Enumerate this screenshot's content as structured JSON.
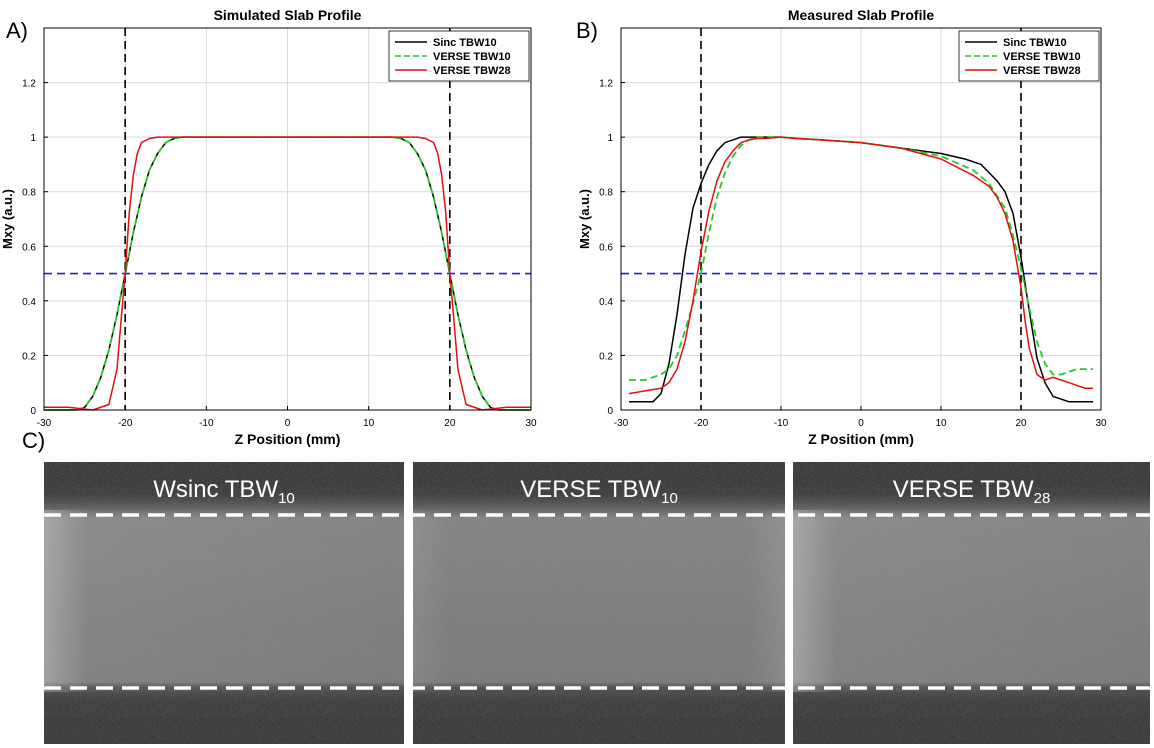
{
  "panel_labels": {
    "a": "A)",
    "b": "B)",
    "c": "C)"
  },
  "chart_data": [
    {
      "type": "line",
      "title": "Simulated Slab Profile",
      "xlabel": "Z Position (mm)",
      "ylabel": "Mxy (a.u.)",
      "xlim": [
        -30,
        30
      ],
      "ylim": [
        0,
        1.4
      ],
      "xticks": [
        -30,
        -20,
        -10,
        0,
        10,
        20,
        30
      ],
      "yticks": [
        0,
        0.2,
        0.4,
        0.6,
        0.8,
        1,
        1.2
      ],
      "ytick_labels": [
        "0",
        "0.2",
        "0.4",
        "0.6",
        "0.8",
        "1",
        "1.2"
      ],
      "grid": true,
      "legend_position": "top-right",
      "reference_lines": {
        "vertical_x": [
          -20,
          20
        ],
        "horizontal_y": 0.5
      },
      "colors": {
        "vertical_ref": "#000000",
        "horizontal_ref": "#1f1fe0"
      },
      "series": [
        {
          "name": "Sinc TBW10",
          "color": "#000000",
          "dash": "solid",
          "x": [
            -30,
            -28,
            -26,
            -25,
            -24,
            -23,
            -22,
            -21,
            -20,
            -19,
            -18,
            -17,
            -16,
            -15,
            -14,
            -13,
            -12,
            -10,
            0,
            10,
            12,
            13,
            14,
            15,
            16,
            17,
            18,
            19,
            20,
            21,
            22,
            23,
            24,
            25,
            26,
            28,
            30
          ],
          "y": [
            0,
            0,
            0,
            0.01,
            0.05,
            0.12,
            0.22,
            0.35,
            0.5,
            0.65,
            0.78,
            0.88,
            0.94,
            0.98,
            0.995,
            1,
            1,
            1,
            1,
            1,
            1,
            1,
            0.995,
            0.98,
            0.94,
            0.88,
            0.78,
            0.65,
            0.5,
            0.35,
            0.22,
            0.12,
            0.05,
            0.01,
            0,
            0,
            0
          ]
        },
        {
          "name": "VERSE TBW10",
          "color": "#22cc22",
          "dash": "dashed",
          "x": [
            -30,
            -28,
            -26,
            -25,
            -24,
            -23,
            -22,
            -21,
            -20,
            -19,
            -18,
            -17,
            -16,
            -15,
            -14,
            -13,
            -12,
            -10,
            0,
            10,
            12,
            13,
            14,
            15,
            16,
            17,
            18,
            19,
            20,
            21,
            22,
            23,
            24,
            25,
            26,
            28,
            30
          ],
          "y": [
            0,
            0,
            0,
            0.01,
            0.05,
            0.12,
            0.22,
            0.35,
            0.5,
            0.65,
            0.78,
            0.88,
            0.94,
            0.98,
            0.995,
            1,
            1,
            1,
            1,
            1,
            1,
            1,
            0.995,
            0.98,
            0.94,
            0.88,
            0.78,
            0.65,
            0.5,
            0.35,
            0.22,
            0.12,
            0.05,
            0.01,
            0,
            0,
            0
          ]
        },
        {
          "name": "VERSE TBW28",
          "color": "#e01010",
          "dash": "solid",
          "x": [
            -30,
            -27,
            -24,
            -22,
            -21,
            -20.5,
            -20,
            -19.5,
            -19,
            -18.5,
            -18,
            -17,
            -16,
            0,
            16,
            17,
            18,
            18.5,
            19,
            19.5,
            20,
            20.5,
            21,
            22,
            24,
            27,
            30
          ],
          "y": [
            0.01,
            0.01,
            0,
            0.02,
            0.15,
            0.33,
            0.5,
            0.72,
            0.86,
            0.94,
            0.98,
            0.995,
            1,
            1,
            1,
            0.995,
            0.98,
            0.94,
            0.86,
            0.72,
            0.5,
            0.33,
            0.15,
            0.02,
            0,
            0.01,
            0.01
          ]
        }
      ]
    },
    {
      "type": "line",
      "title": "Measured Slab Profile",
      "xlabel": "Z Position (mm)",
      "ylabel": "Mxy (a.u.)",
      "xlim": [
        -30,
        30
      ],
      "ylim": [
        0,
        1.4
      ],
      "xticks": [
        -30,
        -20,
        -10,
        0,
        10,
        20,
        30
      ],
      "yticks": [
        0,
        0.2,
        0.4,
        0.6,
        0.8,
        1,
        1.2
      ],
      "ytick_labels": [
        "0",
        "0.2",
        "0.4",
        "0.6",
        "0.8",
        "1",
        "1.2"
      ],
      "grid": true,
      "legend_position": "top-right",
      "reference_lines": {
        "vertical_x": [
          -20,
          20
        ],
        "horizontal_y": 0.5
      },
      "colors": {
        "vertical_ref": "#000000",
        "horizontal_ref": "#1f1fe0"
      },
      "series": [
        {
          "name": "Sinc TBW10",
          "color": "#000000",
          "dash": "solid",
          "x": [
            -29,
            -27,
            -26,
            -25,
            -24,
            -23,
            -22,
            -21,
            -20,
            -19,
            -18,
            -17,
            -16,
            -15,
            -14,
            -12,
            -10,
            -8,
            -5,
            0,
            5,
            10,
            13,
            15,
            16,
            17,
            18,
            19,
            20,
            21,
            22,
            23,
            24,
            25,
            26,
            27,
            29
          ],
          "y": [
            0.03,
            0.03,
            0.03,
            0.06,
            0.17,
            0.35,
            0.57,
            0.74,
            0.83,
            0.9,
            0.95,
            0.98,
            0.99,
            1,
            1,
            1,
            1,
            0.995,
            0.99,
            0.98,
            0.96,
            0.94,
            0.92,
            0.9,
            0.87,
            0.84,
            0.8,
            0.72,
            0.56,
            0.37,
            0.19,
            0.1,
            0.05,
            0.04,
            0.03,
            0.03,
            0.03
          ]
        },
        {
          "name": "VERSE TBW10",
          "color": "#22cc22",
          "dash": "dashed",
          "x": [
            -29,
            -27,
            -25,
            -24,
            -23,
            -22,
            -21,
            -20,
            -19,
            -18,
            -17,
            -16,
            -15,
            -14,
            -13,
            -12,
            -10,
            -8,
            -5,
            0,
            5,
            10,
            14,
            16,
            18,
            19,
            20,
            21,
            22,
            23,
            24,
            25,
            26,
            27,
            28,
            29
          ],
          "y": [
            0.11,
            0.11,
            0.13,
            0.15,
            0.2,
            0.29,
            0.39,
            0.5,
            0.65,
            0.78,
            0.87,
            0.93,
            0.97,
            0.99,
            1,
            1,
            1,
            0.995,
            0.99,
            0.98,
            0.96,
            0.93,
            0.88,
            0.83,
            0.74,
            0.64,
            0.52,
            0.38,
            0.25,
            0.17,
            0.13,
            0.13,
            0.14,
            0.15,
            0.15,
            0.15
          ]
        },
        {
          "name": "VERSE TBW28",
          "color": "#e01010",
          "dash": "solid",
          "x": [
            -29,
            -27,
            -25,
            -24,
            -23,
            -22,
            -21,
            -20,
            -19,
            -18,
            -17,
            -16,
            -15,
            -14,
            -13,
            -12,
            -10,
            -8,
            -5,
            0,
            5,
            10,
            14,
            16,
            17,
            18,
            19,
            20,
            20.5,
            21,
            22,
            23,
            24,
            25,
            26,
            27,
            28,
            29
          ],
          "y": [
            0.06,
            0.07,
            0.08,
            0.1,
            0.15,
            0.25,
            0.4,
            0.58,
            0.73,
            0.84,
            0.91,
            0.95,
            0.98,
            0.99,
            0.995,
            0.995,
            1,
            0.995,
            0.99,
            0.98,
            0.96,
            0.92,
            0.86,
            0.82,
            0.78,
            0.72,
            0.62,
            0.45,
            0.33,
            0.23,
            0.13,
            0.11,
            0.12,
            0.11,
            0.1,
            0.09,
            0.08,
            0.08
          ]
        }
      ]
    }
  ],
  "mri_panels": {
    "panels": [
      {
        "title_main": "Wsinc TBW",
        "title_sub": "10"
      },
      {
        "title_main": "VERSE TBW",
        "title_sub": "10"
      },
      {
        "title_main": "VERSE TBW",
        "title_sub": "28"
      }
    ],
    "colors": {
      "background": "#0a0a0a",
      "band": "#777777",
      "dashed_line": "#ffffff"
    }
  }
}
